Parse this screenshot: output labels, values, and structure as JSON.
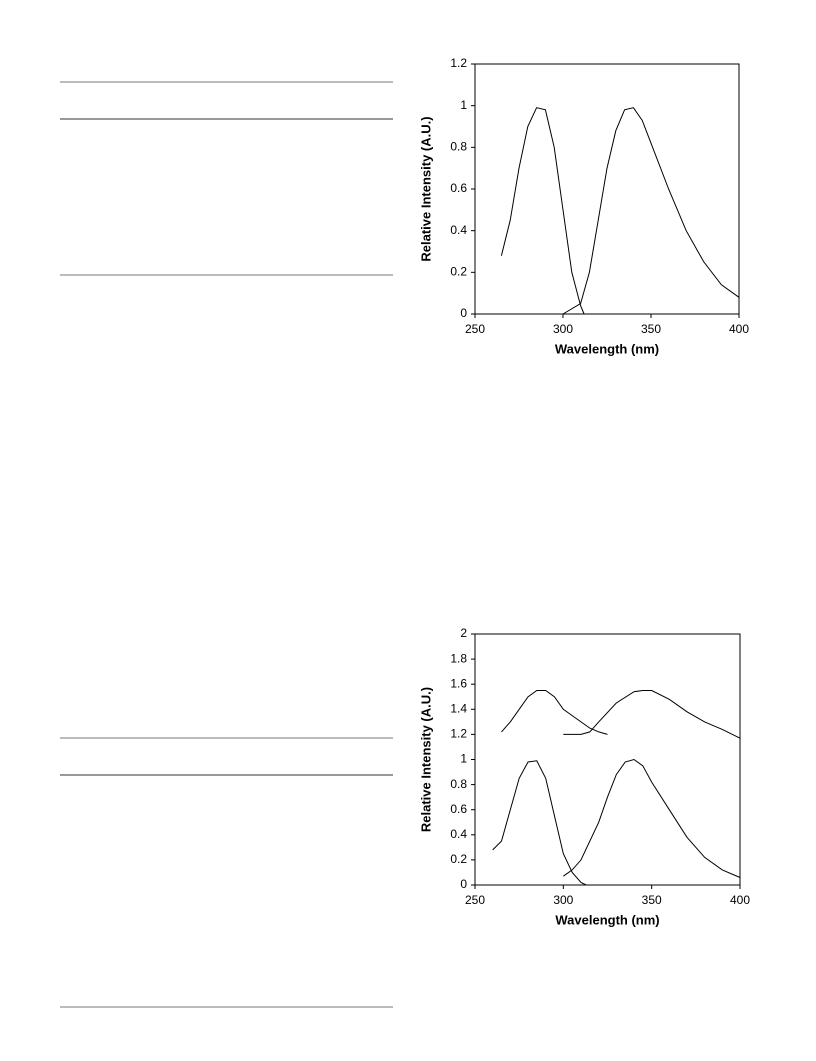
{
  "chart_data": [
    {
      "type": "line",
      "xlabel": "Wavelength (nm)",
      "ylabel": "Relative Intensity (A.U.)",
      "xlim": [
        250,
        400
      ],
      "xticks": [
        250,
        300,
        350,
        400
      ],
      "ylim": [
        0,
        1.2
      ],
      "yticks": [
        0,
        0.2,
        0.4,
        0.6,
        0.8,
        1,
        1.2
      ],
      "grid": false,
      "series": [
        {
          "color": "#000000",
          "x": [
            265,
            270,
            275,
            280,
            285,
            290,
            295,
            300,
            305,
            310,
            312
          ],
          "values": [
            0.28,
            0.45,
            0.7,
            0.9,
            0.99,
            0.98,
            0.8,
            0.5,
            0.2,
            0.04,
            0
          ]
        },
        {
          "color": "#000000",
          "x": [
            300,
            310,
            315,
            320,
            325,
            330,
            335,
            340,
            345,
            350,
            360,
            370,
            380,
            390,
            400
          ],
          "values": [
            0,
            0.05,
            0.2,
            0.45,
            0.7,
            0.88,
            0.98,
            0.99,
            0.93,
            0.82,
            0.6,
            0.4,
            0.25,
            0.14,
            0.08
          ]
        }
      ]
    },
    {
      "type": "line",
      "xlabel": "Wavelength (nm)",
      "ylabel": "Relative Intensity (A.U.)",
      "xlim": [
        250,
        400
      ],
      "xticks": [
        250,
        300,
        350,
        400
      ],
      "ylim": [
        0,
        2
      ],
      "yticks": [
        0,
        0.2,
        0.4,
        0.6,
        0.8,
        1,
        1.2,
        1.4,
        1.6,
        1.8,
        2
      ],
      "grid": false,
      "series": [
        {
          "color": "#000000",
          "x": [
            260,
            265,
            270,
            275,
            280,
            285,
            290,
            295,
            300,
            305,
            310,
            313
          ],
          "values": [
            0.28,
            0.35,
            0.6,
            0.85,
            0.98,
            0.99,
            0.85,
            0.55,
            0.25,
            0.1,
            0.02,
            0
          ]
        },
        {
          "color": "#000000",
          "x": [
            300,
            305,
            310,
            320,
            325,
            330,
            335,
            340,
            345,
            350,
            360,
            370,
            380,
            390,
            400
          ],
          "values": [
            0.07,
            0.12,
            0.2,
            0.5,
            0.7,
            0.88,
            0.98,
            1,
            0.95,
            0.82,
            0.6,
            0.38,
            0.22,
            0.12,
            0.06
          ]
        },
        {
          "color": "#000000",
          "x": [
            265,
            270,
            275,
            280,
            285,
            290,
            295,
            300,
            305,
            310,
            315,
            320,
            325
          ],
          "values": [
            1.22,
            1.3,
            1.4,
            1.5,
            1.55,
            1.55,
            1.5,
            1.4,
            1.35,
            1.3,
            1.25,
            1.22,
            1.2
          ]
        },
        {
          "color": "#000000",
          "x": [
            300,
            310,
            315,
            320,
            330,
            340,
            345,
            350,
            360,
            370,
            380,
            390,
            400
          ],
          "values": [
            1.2,
            1.2,
            1.22,
            1.3,
            1.45,
            1.54,
            1.55,
            1.55,
            1.48,
            1.38,
            1.3,
            1.24,
            1.17
          ]
        }
      ]
    }
  ]
}
